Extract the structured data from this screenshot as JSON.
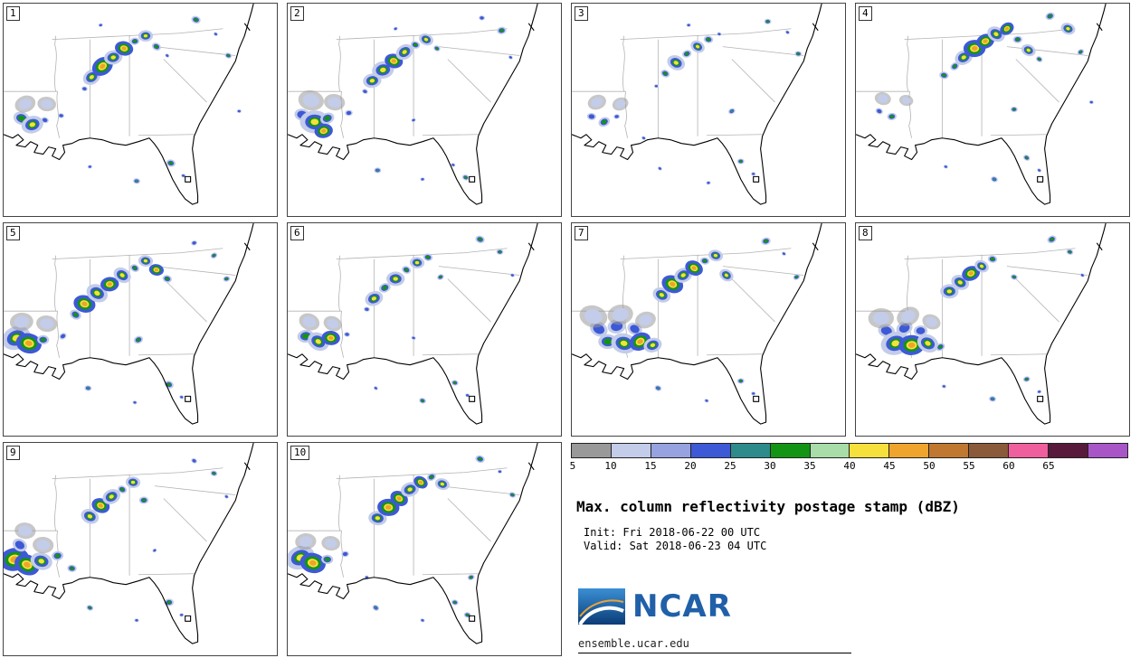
{
  "chart_data": {
    "type": "heatmap",
    "title": "Max. column reflectivity postage stamp (dBZ)",
    "variable": "Max. column reflectivity",
    "units": "dBZ",
    "members": [
      1,
      2,
      3,
      4,
      5,
      6,
      7,
      8,
      9,
      10
    ],
    "levels": [
      5,
      10,
      15,
      20,
      25,
      30,
      35,
      40,
      45,
      50,
      55,
      60,
      65
    ],
    "colors": [
      "#999999",
      "#c3cce8",
      "#96a3e0",
      "#3d59d6",
      "#2e8b8b",
      "#149414",
      "#a8dca8",
      "#f5e03c",
      "#eea42d",
      "#c07830",
      "#8a5a3a",
      "#ef5f9e",
      "#581a3a",
      "#a855c8"
    ],
    "init": "Fri 2018-06-22 00 UTC",
    "valid": "Sat 2018-06-23 04 UTC",
    "legend_position": "bottom-right",
    "region": "Southeastern United States (Gulf Coast, Florida, Carolinas)"
  },
  "legend": {
    "title": "Max. column reflectivity postage stamp (dBZ)",
    "init_line": "Init: Fri 2018-06-22 00 UTC",
    "valid_line": "Valid: Sat 2018-06-23 04 UTC",
    "colorbar": {
      "ticks": [
        5,
        10,
        15,
        20,
        25,
        30,
        35,
        40,
        45,
        50,
        55,
        60,
        65
      ],
      "colors": [
        "#999999",
        "#c3cce8",
        "#96a3e0",
        "#3d59d6",
        "#2e8b8b",
        "#149414",
        "#a8dca8",
        "#f5e03c",
        "#eea42d",
        "#c07830",
        "#8a5a3a",
        "#ef5f9e",
        "#581a3a",
        "#a855c8"
      ]
    },
    "ncar_text": "NCAR",
    "site_url": "ensemble.ucar.edu"
  },
  "panels": [
    {
      "label": "1",
      "clusters": [
        [
          98,
          82,
          5,
          7
        ],
        [
          110,
          70,
          6,
          8
        ],
        [
          122,
          60,
          5,
          7
        ],
        [
          134,
          50,
          5,
          8
        ],
        [
          146,
          42,
          4,
          5
        ],
        [
          158,
          36,
          4,
          7
        ],
        [
          90,
          95,
          4,
          3
        ],
        [
          170,
          48,
          4,
          5
        ],
        [
          182,
          58,
          3,
          3
        ],
        [
          20,
          128,
          7,
          5
        ],
        [
          32,
          135,
          6,
          7
        ],
        [
          46,
          130,
          5,
          3
        ],
        [
          24,
          112,
          9,
          1
        ],
        [
          48,
          112,
          8,
          1
        ],
        [
          64,
          125,
          4,
          3
        ],
        [
          186,
          178,
          4,
          5
        ],
        [
          200,
          192,
          3,
          3
        ],
        [
          148,
          198,
          3,
          4
        ],
        [
          96,
          182,
          3,
          3
        ],
        [
          250,
          58,
          3,
          5
        ],
        [
          236,
          34,
          3,
          3
        ],
        [
          214,
          18,
          4,
          5
        ],
        [
          262,
          120,
          3,
          3
        ],
        [
          108,
          24,
          3,
          3
        ]
      ]
    },
    {
      "label": "2",
      "clusters": [
        [
          94,
          86,
          5,
          7
        ],
        [
          106,
          74,
          6,
          7
        ],
        [
          118,
          64,
          5,
          8
        ],
        [
          130,
          54,
          5,
          7
        ],
        [
          142,
          46,
          4,
          5
        ],
        [
          154,
          40,
          4,
          7
        ],
        [
          86,
          98,
          4,
          3
        ],
        [
          166,
          50,
          3,
          5
        ],
        [
          16,
          124,
          10,
          3
        ],
        [
          30,
          132,
          8,
          7
        ],
        [
          44,
          128,
          6,
          5
        ],
        [
          26,
          108,
          11,
          1
        ],
        [
          52,
          110,
          9,
          1
        ],
        [
          68,
          122,
          5,
          3
        ],
        [
          40,
          142,
          5,
          8
        ],
        [
          184,
          180,
          3,
          3
        ],
        [
          198,
          194,
          3,
          5
        ],
        [
          150,
          196,
          3,
          3
        ],
        [
          100,
          186,
          3,
          4
        ],
        [
          248,
          60,
          3,
          3
        ],
        [
          238,
          30,
          4,
          5
        ],
        [
          216,
          16,
          4,
          3
        ],
        [
          140,
          130,
          3,
          3
        ],
        [
          120,
          28,
          3,
          3
        ]
      ]
    },
    {
      "label": "3",
      "clusters": [
        [
          104,
          78,
          4,
          5
        ],
        [
          116,
          66,
          5,
          7
        ],
        [
          128,
          56,
          4,
          5
        ],
        [
          140,
          48,
          4,
          7
        ],
        [
          152,
          40,
          4,
          5
        ],
        [
          164,
          34,
          3,
          3
        ],
        [
          94,
          92,
          3,
          3
        ],
        [
          22,
          126,
          6,
          3
        ],
        [
          36,
          132,
          5,
          5
        ],
        [
          50,
          126,
          4,
          3
        ],
        [
          28,
          110,
          8,
          1
        ],
        [
          54,
          112,
          7,
          1
        ],
        [
          188,
          176,
          3,
          5
        ],
        [
          202,
          190,
          3,
          3
        ],
        [
          152,
          200,
          3,
          3
        ],
        [
          98,
          184,
          3,
          3
        ],
        [
          252,
          56,
          3,
          5
        ],
        [
          240,
          32,
          3,
          3
        ],
        [
          218,
          20,
          3,
          5
        ],
        [
          178,
          120,
          3,
          4
        ],
        [
          80,
          150,
          3,
          3
        ],
        [
          130,
          24,
          3,
          3
        ]
      ]
    },
    {
      "label": "4",
      "clusters": [
        [
          120,
          60,
          5,
          7
        ],
        [
          132,
          50,
          6,
          8
        ],
        [
          144,
          42,
          5,
          8
        ],
        [
          156,
          34,
          5,
          7
        ],
        [
          168,
          28,
          4,
          8
        ],
        [
          180,
          40,
          4,
          5
        ],
        [
          110,
          70,
          4,
          5
        ],
        [
          192,
          52,
          4,
          7
        ],
        [
          204,
          62,
          3,
          5
        ],
        [
          26,
          120,
          5,
          3
        ],
        [
          40,
          126,
          4,
          5
        ],
        [
          30,
          106,
          7,
          1
        ],
        [
          56,
          108,
          6,
          1
        ],
        [
          190,
          172,
          3,
          5
        ],
        [
          204,
          186,
          3,
          3
        ],
        [
          154,
          196,
          3,
          4
        ],
        [
          100,
          182,
          3,
          3
        ],
        [
          250,
          54,
          3,
          5
        ],
        [
          236,
          28,
          4,
          7
        ],
        [
          216,
          14,
          4,
          5
        ],
        [
          262,
          110,
          3,
          3
        ],
        [
          176,
          118,
          3,
          5
        ],
        [
          98,
          80,
          4,
          5
        ]
      ]
    },
    {
      "label": "5",
      "clusters": [
        [
          90,
          90,
          6,
          8
        ],
        [
          104,
          78,
          6,
          7
        ],
        [
          118,
          68,
          5,
          8
        ],
        [
          132,
          58,
          5,
          7
        ],
        [
          146,
          50,
          4,
          5
        ],
        [
          158,
          42,
          4,
          7
        ],
        [
          80,
          102,
          5,
          5
        ],
        [
          170,
          52,
          4,
          8
        ],
        [
          182,
          62,
          4,
          5
        ],
        [
          14,
          128,
          8,
          7
        ],
        [
          28,
          134,
          7,
          8
        ],
        [
          44,
          130,
          5,
          5
        ],
        [
          20,
          110,
          10,
          1
        ],
        [
          48,
          112,
          9,
          1
        ],
        [
          66,
          126,
          5,
          3
        ],
        [
          184,
          180,
          4,
          5
        ],
        [
          198,
          194,
          3,
          3
        ],
        [
          146,
          200,
          3,
          3
        ],
        [
          94,
          184,
          3,
          4
        ],
        [
          248,
          62,
          3,
          5
        ],
        [
          234,
          36,
          3,
          5
        ],
        [
          212,
          22,
          4,
          3
        ],
        [
          150,
          130,
          4,
          5
        ]
      ]
    },
    {
      "label": "6",
      "clusters": [
        [
          96,
          84,
          5,
          7
        ],
        [
          108,
          72,
          5,
          5
        ],
        [
          120,
          62,
          5,
          7
        ],
        [
          132,
          52,
          4,
          5
        ],
        [
          144,
          44,
          4,
          7
        ],
        [
          156,
          38,
          4,
          5
        ],
        [
          88,
          96,
          4,
          3
        ],
        [
          20,
          126,
          7,
          5
        ],
        [
          34,
          132,
          6,
          7
        ],
        [
          48,
          128,
          5,
          8
        ],
        [
          24,
          110,
          9,
          1
        ],
        [
          50,
          112,
          8,
          1
        ],
        [
          66,
          124,
          4,
          3
        ],
        [
          186,
          178,
          3,
          5
        ],
        [
          200,
          192,
          3,
          3
        ],
        [
          150,
          198,
          3,
          5
        ],
        [
          98,
          184,
          3,
          3
        ],
        [
          250,
          58,
          3,
          3
        ],
        [
          236,
          32,
          3,
          5
        ],
        [
          214,
          18,
          4,
          5
        ],
        [
          140,
          128,
          3,
          3
        ],
        [
          170,
          60,
          3,
          5
        ]
      ]
    },
    {
      "label": "7",
      "clusters": [
        [
          100,
          80,
          5,
          7
        ],
        [
          112,
          68,
          6,
          8
        ],
        [
          124,
          58,
          5,
          7
        ],
        [
          136,
          50,
          5,
          8
        ],
        [
          148,
          42,
          4,
          5
        ],
        [
          160,
          36,
          4,
          7
        ],
        [
          30,
          118,
          12,
          3
        ],
        [
          50,
          115,
          12,
          3
        ],
        [
          70,
          118,
          10,
          3
        ],
        [
          40,
          132,
          8,
          5
        ],
        [
          58,
          134,
          7,
          7
        ],
        [
          76,
          132,
          6,
          8
        ],
        [
          90,
          136,
          5,
          7
        ],
        [
          24,
          104,
          12,
          1
        ],
        [
          54,
          102,
          11,
          1
        ],
        [
          82,
          108,
          9,
          1
        ],
        [
          188,
          176,
          3,
          5
        ],
        [
          202,
          190,
          3,
          3
        ],
        [
          150,
          198,
          3,
          3
        ],
        [
          96,
          184,
          3,
          4
        ],
        [
          250,
          60,
          3,
          5
        ],
        [
          236,
          34,
          3,
          3
        ],
        [
          216,
          20,
          4,
          5
        ],
        [
          172,
          58,
          4,
          7
        ]
      ]
    },
    {
      "label": "8",
      "clusters": [
        [
          104,
          76,
          5,
          7
        ],
        [
          116,
          66,
          5,
          7
        ],
        [
          128,
          56,
          5,
          8
        ],
        [
          140,
          48,
          4,
          7
        ],
        [
          152,
          40,
          4,
          5
        ],
        [
          34,
          120,
          11,
          3
        ],
        [
          54,
          117,
          11,
          3
        ],
        [
          72,
          120,
          9,
          3
        ],
        [
          44,
          134,
          8,
          7
        ],
        [
          62,
          136,
          7,
          8
        ],
        [
          80,
          134,
          6,
          7
        ],
        [
          28,
          106,
          11,
          1
        ],
        [
          58,
          104,
          10,
          1
        ],
        [
          84,
          110,
          8,
          1
        ],
        [
          190,
          174,
          3,
          5
        ],
        [
          204,
          188,
          3,
          3
        ],
        [
          152,
          196,
          3,
          4
        ],
        [
          98,
          182,
          3,
          3
        ],
        [
          252,
          58,
          3,
          3
        ],
        [
          238,
          32,
          3,
          5
        ],
        [
          218,
          18,
          4,
          5
        ],
        [
          176,
          60,
          3,
          5
        ],
        [
          94,
          138,
          4,
          5
        ]
      ]
    },
    {
      "label": "9",
      "clusters": [
        [
          96,
          82,
          5,
          7
        ],
        [
          108,
          70,
          5,
          8
        ],
        [
          120,
          60,
          5,
          7
        ],
        [
          132,
          52,
          4,
          5
        ],
        [
          144,
          44,
          4,
          7
        ],
        [
          12,
          130,
          8,
          8
        ],
        [
          26,
          136,
          7,
          8
        ],
        [
          42,
          132,
          6,
          7
        ],
        [
          18,
          114,
          10,
          3
        ],
        [
          44,
          114,
          9,
          1
        ],
        [
          24,
          98,
          9,
          1
        ],
        [
          60,
          126,
          5,
          5
        ],
        [
          76,
          140,
          4,
          5
        ],
        [
          184,
          178,
          4,
          5
        ],
        [
          198,
          192,
          3,
          3
        ],
        [
          148,
          198,
          3,
          3
        ],
        [
          96,
          184,
          3,
          5
        ],
        [
          248,
          60,
          3,
          3
        ],
        [
          234,
          34,
          3,
          5
        ],
        [
          212,
          20,
          4,
          3
        ],
        [
          156,
          64,
          4,
          5
        ],
        [
          168,
          120,
          3,
          3
        ]
      ]
    },
    {
      "label": "10",
      "clusters": [
        [
          100,
          84,
          5,
          7
        ],
        [
          112,
          72,
          6,
          8
        ],
        [
          124,
          62,
          5,
          8
        ],
        [
          136,
          52,
          5,
          7
        ],
        [
          148,
          44,
          4,
          8
        ],
        [
          160,
          38,
          4,
          5
        ],
        [
          172,
          46,
          4,
          7
        ],
        [
          14,
          128,
          8,
          7
        ],
        [
          28,
          134,
          7,
          8
        ],
        [
          44,
          130,
          5,
          5
        ],
        [
          20,
          110,
          9,
          1
        ],
        [
          48,
          112,
          8,
          1
        ],
        [
          64,
          124,
          5,
          3
        ],
        [
          186,
          178,
          3,
          5
        ],
        [
          200,
          192,
          3,
          5
        ],
        [
          150,
          198,
          3,
          3
        ],
        [
          98,
          184,
          3,
          4
        ],
        [
          250,
          58,
          3,
          5
        ],
        [
          236,
          32,
          3,
          3
        ],
        [
          214,
          18,
          4,
          5
        ],
        [
          204,
          150,
          3,
          5
        ],
        [
          88,
          150,
          3,
          3
        ]
      ]
    }
  ]
}
